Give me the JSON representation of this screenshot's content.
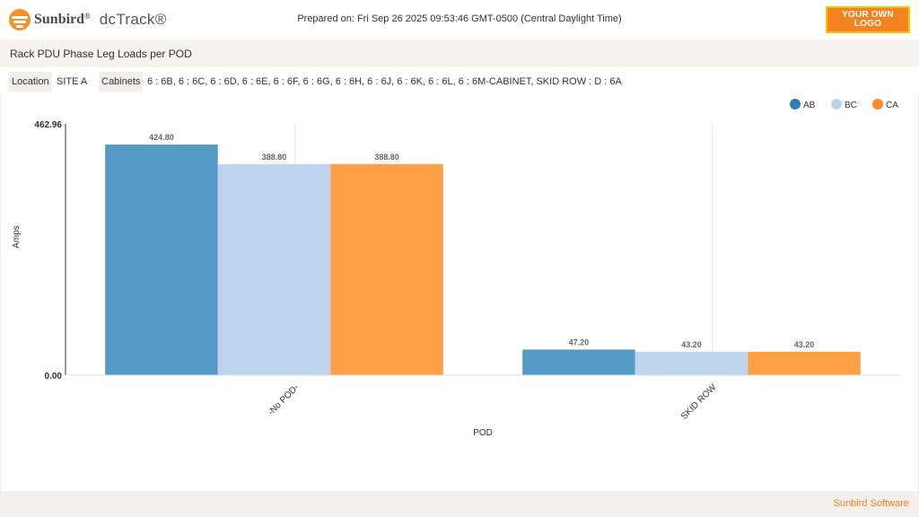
{
  "header": {
    "brand": "Sunbird",
    "brand_reg": "®",
    "product": "dcTrack®",
    "prepared_on": "Prepared on: Fri Sep 26 2025 09:53:46 GMT-0500 (Central Daylight Time)",
    "logo_line1": "YOUR OWN",
    "logo_line2": "LOGO"
  },
  "report": {
    "title": "Rack PDU Phase Leg Loads per POD"
  },
  "filters": {
    "location_label": "Location",
    "location_value": "SITE A",
    "cabinets_label": "Cabinets",
    "cabinets_value": "6 : 6B, 6 : 6C, 6 : 6D, 6 : 6E, 6 : 6F, 6 : 6G, 6 : 6H, 6 : 6J, 6 : 6K, 6 : 6L, 6 : 6M-CABINET, SKID ROW : D : 6A"
  },
  "footer": {
    "text": "Sunbird Software"
  },
  "chart_data": {
    "type": "bar",
    "categories": [
      "-No POD-",
      "SKID ROW"
    ],
    "series": [
      {
        "name": "AB",
        "values": [
          424.8,
          47.2
        ],
        "color": "#5599c7"
      },
      {
        "name": "BC",
        "values": [
          388.8,
          43.2
        ],
        "color": "#bed4ee"
      },
      {
        "name": "CA",
        "values": [
          388.8,
          43.2
        ],
        "color": "#ff9f46"
      }
    ],
    "legend_colors": [
      "#2c7fb8",
      "#bcd3ee",
      "#fb8c2b"
    ],
    "value_labels": [
      [
        "424.80",
        "47.20"
      ],
      [
        "388.80",
        "43.20"
      ],
      [
        "388.80",
        "43.20"
      ]
    ],
    "ylim": [
      0,
      462.96
    ],
    "y_tick_labels": [
      "0.00",
      "462.96"
    ],
    "xlabel": "POD",
    "ylabel": "Amps",
    "legend_position": "top-right",
    "grid": true
  }
}
